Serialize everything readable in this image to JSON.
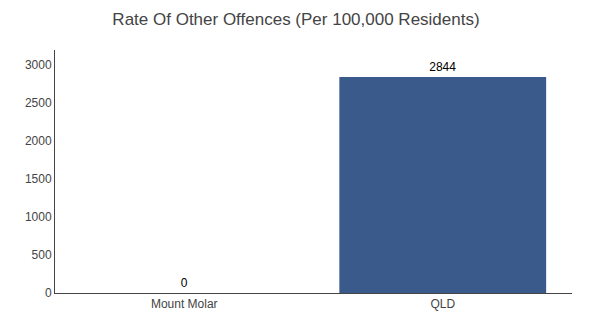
{
  "chart_data": {
    "type": "bar",
    "title": "Rate Of Other Offences (Per 100,000 Residents)",
    "categories": [
      "Mount Molar",
      "QLD"
    ],
    "values": [
      0,
      2844
    ],
    "colors": [
      "#3a5a8c",
      "#3a5a8c"
    ],
    "ylim": [
      0,
      3200
    ],
    "yticks": [
      0,
      500,
      1000,
      1500,
      2000,
      2500,
      3000
    ],
    "grid": false,
    "data_labels": true
  }
}
